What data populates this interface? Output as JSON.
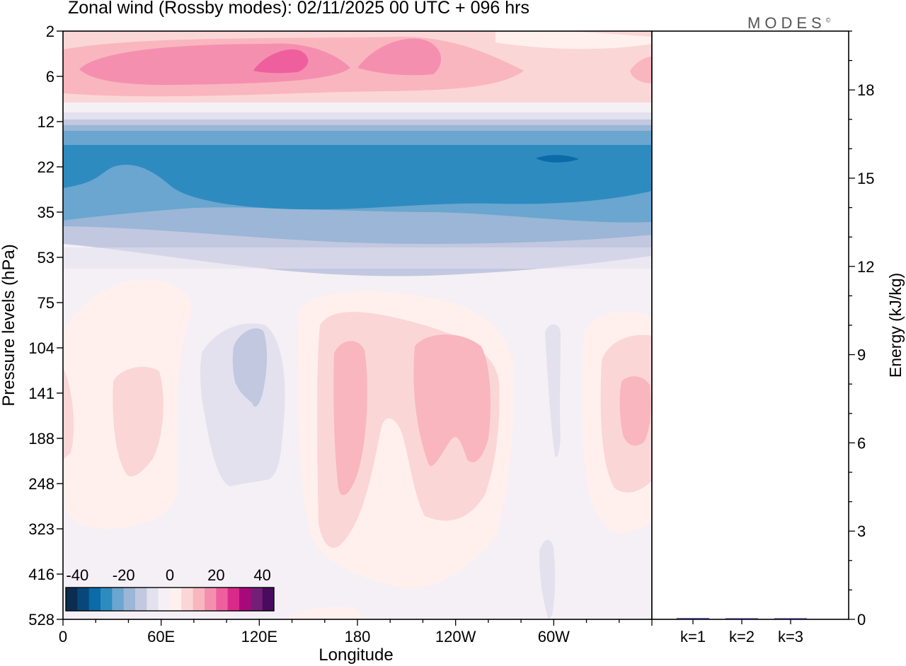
{
  "title": "Zonal wind (Rossby modes):  02/11/2025  00 UTC  + 096 hrs",
  "logo_text": "MODES",
  "logo_mark": "©",
  "chart_data": [
    {
      "type": "heatmap",
      "title": "Zonal wind (Rossby modes):  02/11/2025  00 UTC  + 096 hrs",
      "xlabel": "Longitude",
      "ylabel": "Pressure levels (hPa)",
      "x_ticks": [
        "0",
        "60E",
        "120E",
        "180",
        "120W",
        "60W"
      ],
      "x_tick_degrees": [
        0,
        60,
        120,
        180,
        240,
        300
      ],
      "xlim_degrees": [
        0,
        360
      ],
      "y_levels_hPa": [
        "2",
        "6",
        "12",
        "22",
        "35",
        "53",
        "75",
        "104",
        "141",
        "188",
        "248",
        "323",
        "416",
        "528"
      ],
      "colorbar": {
        "tick_labels": [
          "-40",
          "-20",
          "0",
          "20",
          "40"
        ],
        "range": [
          -45,
          45
        ],
        "step": 5,
        "colors": [
          "#0b2d4f",
          "#08477a",
          "#0b6aa8",
          "#2e8bc0",
          "#6aa6cf",
          "#9bb6d6",
          "#c2c8e0",
          "#e3e1ee",
          "#f5f0f5",
          "#fff0ee",
          "#fbd6d6",
          "#f9b6bf",
          "#f58fb0",
          "#ef5f9e",
          "#d92a8a",
          "#a8097a",
          "#741f77",
          "#4a0a5e"
        ]
      },
      "notable_features": [
        {
          "name": "stratospheric easterly jet core",
          "level_hPa": "22",
          "value_approx": -32
        },
        {
          "name": "upper westerly maxima",
          "level_hPa": "6",
          "value_approx": 20
        }
      ]
    },
    {
      "type": "bar",
      "title": "",
      "ylabel": "Energy (kJ/kg)",
      "categories": [
        "k=1",
        "k=2",
        "k=3"
      ],
      "values": [
        0.04,
        0.02,
        0.01
      ],
      "ylim": [
        0,
        20
      ],
      "y_ticks": [
        "0",
        "3",
        "6",
        "9",
        "12",
        "15",
        "18"
      ],
      "bar_color": "#1a1a5e"
    }
  ]
}
